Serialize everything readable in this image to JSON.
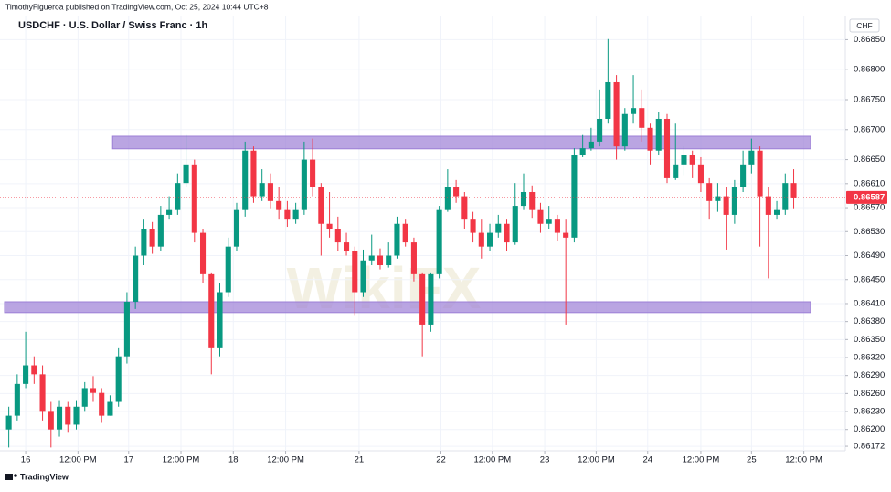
{
  "header": "TimothyFigueroa published on TradingView.com, Oct 25, 2024 10:44 UTC+8",
  "footer": "TradingView",
  "watermark": "WikiFX",
  "chart_data": {
    "type": "candlestick",
    "title": "USDCHF · U.S. Dollar / Swiss Franc · 1h",
    "currency": "CHF",
    "up_color": "#089981",
    "down_color": "#f23645",
    "grid": true,
    "xlim": [
      0,
      95.5
    ],
    "ylim": [
      0.86166,
      0.86904
    ],
    "xticks": [
      {
        "value": 2.5,
        "label": "16"
      },
      {
        "value": 8.7,
        "label": "12:00 PM"
      },
      {
        "value": 14.7,
        "label": "17"
      },
      {
        "value": 20.9,
        "label": "12:00 PM"
      },
      {
        "value": 27.1,
        "label": "18"
      },
      {
        "value": 33.3,
        "label": "12:00 PM"
      },
      {
        "value": 42.0,
        "label": "21"
      },
      {
        "value": 51.7,
        "label": "22"
      },
      {
        "value": 57.8,
        "label": "12:00 PM"
      },
      {
        "value": 64.0,
        "label": "23"
      },
      {
        "value": 70.1,
        "label": "12:00 PM"
      },
      {
        "value": 76.2,
        "label": "24"
      },
      {
        "value": 82.5,
        "label": "12:00 PM"
      },
      {
        "value": 88.5,
        "label": "25"
      },
      {
        "value": 94.7,
        "label": "12:00 PM"
      }
    ],
    "yticks": [
      {
        "value": 0.8685,
        "label": "0.86850"
      },
      {
        "value": 0.868,
        "label": "0.86800"
      },
      {
        "value": 0.8675,
        "label": "0.86750"
      },
      {
        "value": 0.867,
        "label": "0.86700"
      },
      {
        "value": 0.8665,
        "label": "0.86650"
      },
      {
        "value": 0.8661,
        "label": "0.86610"
      },
      {
        "value": 0.8657,
        "label": "0.86570"
      },
      {
        "value": 0.8653,
        "label": "0.86530"
      },
      {
        "value": 0.8649,
        "label": "0.86490"
      },
      {
        "value": 0.8645,
        "label": "0.86450"
      },
      {
        "value": 0.8641,
        "label": "0.86410"
      },
      {
        "value": 0.8638,
        "label": "0.86380"
      },
      {
        "value": 0.8635,
        "label": "0.86350"
      },
      {
        "value": 0.8632,
        "label": "0.86320"
      },
      {
        "value": 0.8629,
        "label": "0.86290"
      },
      {
        "value": 0.8626,
        "label": "0.86260"
      },
      {
        "value": 0.8623,
        "label": "0.86230"
      },
      {
        "value": 0.862,
        "label": "0.86200"
      },
      0.86172
    ],
    "last_price": {
      "value": 0.86587,
      "label": "0.86587"
    },
    "zones": [
      {
        "top": 0.86689,
        "bottom": 0.86668,
        "start": 12.8,
        "color": "#9c7fd6"
      },
      {
        "top": 0.86413,
        "bottom": 0.86395,
        "start": 0,
        "color": "#9c7fd6"
      }
    ],
    "open": [
      0.862,
      0.86223,
      0.86276,
      0.86307,
      0.86292,
      0.86231,
      0.862,
      0.86238,
      0.86208,
      0.86238,
      0.86269,
      0.86261,
      0.86223,
      0.86246,
      0.86322,
      0.86413,
      0.8649,
      0.86535,
      0.86505,
      0.86558,
      0.86566,
      0.86611,
      0.86642,
      0.86528,
      0.86459,
      0.86337,
      0.86429,
      0.86505,
      0.86566,
      0.86665,
      0.86589,
      0.86611,
      0.86581,
      0.86566,
      0.8655,
      0.86566,
      0.8665,
      0.86604,
      0.86543,
      0.86535,
      0.86512,
      0.86497,
      0.86429,
      0.86482,
      0.8649,
      0.86474,
      0.8649,
      0.86543,
      0.86512,
      0.86459,
      0.86375,
      0.86459,
      0.86566,
      0.86604,
      0.86589,
      0.8655,
      0.86528,
      0.86505,
      0.86528,
      0.86543,
      0.86512,
      0.86573,
      0.86596,
      0.86566,
      0.86543,
      0.8655,
      0.86528,
      0.8652,
      0.86657,
      0.86669,
      0.8668,
      0.86718,
      0.86779,
      0.86672,
      0.86726,
      0.86736,
      0.86703,
      0.86665,
      0.86718,
      0.86619,
      0.86642,
      0.86657,
      0.86642,
      0.86611,
      0.86581,
      0.86589,
      0.86558,
      0.86604,
      0.86642,
      0.86665,
      0.86589,
      0.86558,
      0.86566,
      0.86611
    ],
    "high": [
      0.86238,
      0.86292,
      0.86363,
      0.86322,
      0.86307,
      0.86246,
      0.86249,
      0.86246,
      0.86249,
      0.86279,
      0.86289,
      0.86269,
      0.86257,
      0.86337,
      0.86429,
      0.86505,
      0.8655,
      0.86546,
      0.86573,
      0.86589,
      0.86627,
      0.86691,
      0.8665,
      0.86535,
      0.86462,
      0.86444,
      0.8652,
      0.86578,
      0.8668,
      0.86672,
      0.86634,
      0.86627,
      0.86604,
      0.86581,
      0.86578,
      0.8668,
      0.86685,
      0.86611,
      0.86596,
      0.86555,
      0.86528,
      0.86505,
      0.865,
      0.86525,
      0.86502,
      0.86512,
      0.86555,
      0.8655,
      0.8652,
      0.86462,
      0.86462,
      0.86573,
      0.86634,
      0.86616,
      0.86596,
      0.86563,
      0.8655,
      0.86543,
      0.86558,
      0.8655,
      0.86611,
      0.86627,
      0.86607,
      0.86578,
      0.86573,
      0.86558,
      0.8655,
      0.86669,
      0.86691,
      0.86703,
      0.86767,
      0.86851,
      0.86791,
      0.86736,
      0.86791,
      0.86767,
      0.8671,
      0.8673,
      0.86726,
      0.8671,
      0.86672,
      0.86665,
      0.86654,
      0.86619,
      0.86611,
      0.86604,
      0.86616,
      0.86665,
      0.86685,
      0.86672,
      0.86604,
      0.86581,
      0.86627,
      0.86634
    ],
    "low": [
      0.8617,
      0.86215,
      0.86269,
      0.86276,
      0.86215,
      0.8617,
      0.86188,
      0.86196,
      0.862,
      0.86231,
      0.86246,
      0.86211,
      0.86223,
      0.86238,
      0.8631,
      0.86401,
      0.86474,
      0.86493,
      0.86497,
      0.8655,
      0.86558,
      0.86604,
      0.86512,
      0.86444,
      0.86292,
      0.86322,
      0.86421,
      0.86497,
      0.86555,
      0.86578,
      0.86581,
      0.86569,
      0.8655,
      0.86538,
      0.86543,
      0.86558,
      0.86589,
      0.8649,
      0.8652,
      0.86497,
      0.8649,
      0.86391,
      0.86421,
      0.86474,
      0.86467,
      0.8647,
      0.86485,
      0.86505,
      0.86447,
      0.86322,
      0.86363,
      0.86452,
      0.86563,
      0.86578,
      0.86535,
      0.86512,
      0.86485,
      0.86497,
      0.8652,
      0.86497,
      0.86508,
      0.86566,
      0.86553,
      0.86528,
      0.86535,
      0.86515,
      0.86375,
      0.86512,
      0.86654,
      0.86665,
      0.86672,
      0.8671,
      0.8665,
      0.86665,
      0.8671,
      0.8668,
      0.86642,
      0.86657,
      0.86611,
      0.86616,
      0.86624,
      0.86619,
      0.86596,
      0.8655,
      0.86563,
      0.865,
      0.86543,
      0.86596,
      0.86627,
      0.86505,
      0.86452,
      0.8655,
      0.86558,
      0.86569
    ],
    "close": [
      0.86223,
      0.86276,
      0.86307,
      0.86292,
      0.86231,
      0.862,
      0.86238,
      0.86208,
      0.86238,
      0.86269,
      0.86261,
      0.86223,
      0.86246,
      0.86322,
      0.86413,
      0.8649,
      0.86535,
      0.86505,
      0.86558,
      0.86566,
      0.86611,
      0.86642,
      0.86528,
      0.86459,
      0.86337,
      0.86429,
      0.86505,
      0.86566,
      0.86665,
      0.86589,
      0.86611,
      0.86581,
      0.86566,
      0.8655,
      0.86566,
      0.8665,
      0.86604,
      0.86543,
      0.86535,
      0.86512,
      0.86497,
      0.86429,
      0.86482,
      0.8649,
      0.86474,
      0.8649,
      0.86543,
      0.86512,
      0.86459,
      0.86375,
      0.86459,
      0.86566,
      0.86604,
      0.86589,
      0.8655,
      0.86528,
      0.86505,
      0.86528,
      0.86543,
      0.86512,
      0.86573,
      0.86596,
      0.86566,
      0.86543,
      0.8655,
      0.86528,
      0.8652,
      0.86657,
      0.86669,
      0.8668,
      0.86718,
      0.86779,
      0.86672,
      0.86726,
      0.86736,
      0.86703,
      0.86665,
      0.86718,
      0.86619,
      0.86642,
      0.86657,
      0.86642,
      0.86611,
      0.86581,
      0.86589,
      0.86558,
      0.86604,
      0.86642,
      0.86665,
      0.86589,
      0.86558,
      0.86566,
      0.86611,
      0.86587
    ]
  }
}
